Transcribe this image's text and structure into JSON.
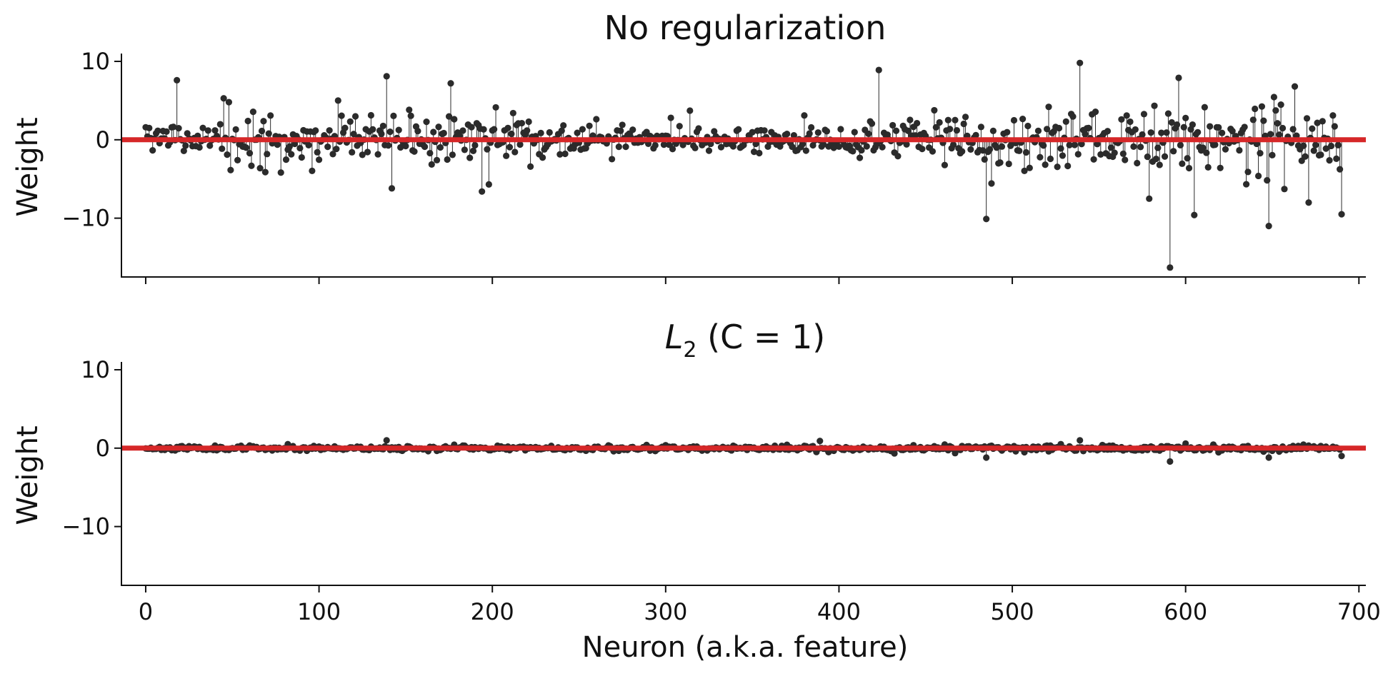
{
  "chart_data": [
    {
      "type": "scatter",
      "title": "No regularization",
      "xlabel": "",
      "ylabel": "Weight",
      "xlim": [
        -14,
        704
      ],
      "ylim": [
        -17.5,
        11
      ],
      "yticks": [
        10,
        0,
        -10
      ],
      "xticks": [
        0,
        100,
        200,
        300,
        400,
        500,
        600,
        700
      ],
      "xtick_labels_visible": false,
      "baseline": 0,
      "baseline_color": "#d62728",
      "marker_color": "#2b2b2b",
      "stem_lines": true,
      "num_points": 691,
      "noted_points": [
        {
          "x": 18,
          "y": 7.6
        },
        {
          "x": 48,
          "y": 4.8
        },
        {
          "x": 111,
          "y": 5.0
        },
        {
          "x": 139,
          "y": 8.1
        },
        {
          "x": 142,
          "y": -6.2
        },
        {
          "x": 176,
          "y": 7.2
        },
        {
          "x": 194,
          "y": -6.6
        },
        {
          "x": 198,
          "y": -5.7
        },
        {
          "x": 423,
          "y": 8.9
        },
        {
          "x": 485,
          "y": -10.1
        },
        {
          "x": 539,
          "y": 9.8
        },
        {
          "x": 591,
          "y": -16.3
        },
        {
          "x": 596,
          "y": 7.9
        },
        {
          "x": 605,
          "y": -9.6
        },
        {
          "x": 648,
          "y": -11.0
        },
        {
          "x": 663,
          "y": 6.8
        },
        {
          "x": 690,
          "y": -9.5
        }
      ],
      "amplitude_profile": [
        [
          0,
          2.0
        ],
        [
          140,
          3.3
        ],
        [
          200,
          2.6
        ],
        [
          280,
          1.2
        ],
        [
          400,
          1.6
        ],
        [
          460,
          3.2
        ],
        [
          560,
          3.2
        ],
        [
          600,
          4.0
        ],
        [
          650,
          4.4
        ],
        [
          691,
          3.2
        ]
      ]
    },
    {
      "type": "scatter",
      "title": "L₂ (C = 1)",
      "title_var": "L",
      "title_sub": "2",
      "title_rest": " (C = 1)",
      "xlabel": "Neuron (a.k.a. feature)",
      "ylabel": "Weight",
      "xlim": [
        -14,
        704
      ],
      "ylim": [
        -17.5,
        11
      ],
      "yticks": [
        10,
        0,
        -10
      ],
      "xticks": [
        0,
        100,
        200,
        300,
        400,
        500,
        600,
        700
      ],
      "xtick_labels": [
        "0",
        "100",
        "200",
        "300",
        "400",
        "500",
        "600",
        "700"
      ],
      "baseline": 0,
      "baseline_color": "#d62728",
      "marker_color": "#2b2b2b",
      "stem_lines": true,
      "num_points": 691,
      "noted_points": [
        {
          "x": 139,
          "y": 1.0
        },
        {
          "x": 485,
          "y": -1.2
        },
        {
          "x": 539,
          "y": 1.0
        },
        {
          "x": 591,
          "y": -1.7
        },
        {
          "x": 648,
          "y": -1.2
        },
        {
          "x": 690,
          "y": -1.0
        }
      ],
      "amplitude_profile": [
        [
          0,
          0.25
        ],
        [
          691,
          0.35
        ]
      ]
    }
  ]
}
